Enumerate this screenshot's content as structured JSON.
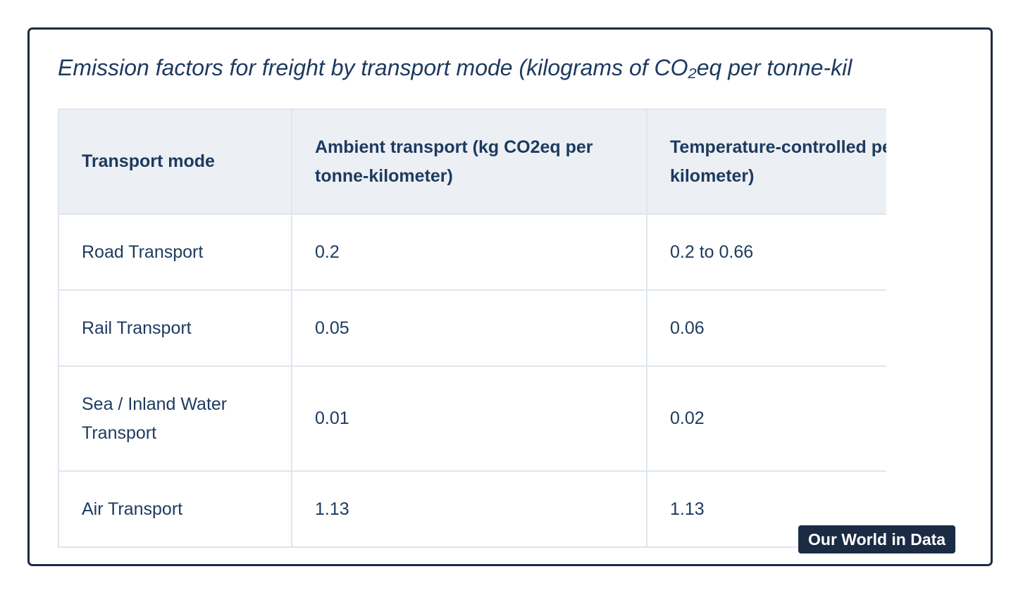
{
  "title": "Emission factors for freight by transport mode (kilograms of CO₂eq per tonne-kil",
  "table": {
    "headers": [
      "Transport mode",
      "Ambient transport (kg CO2eq per tonne-kilometer)",
      "Temperature-controlled per tonne-kilometer)"
    ],
    "rows": [
      [
        "Road Transport",
        "0.2",
        "0.2 to 0.66"
      ],
      [
        "Rail Transport",
        "0.05",
        "0.06"
      ],
      [
        "Sea / Inland Water Transport",
        "0.01",
        "0.02"
      ],
      [
        "Air Transport",
        "1.13",
        "1.13"
      ]
    ]
  },
  "badge": "Our World in Data"
}
